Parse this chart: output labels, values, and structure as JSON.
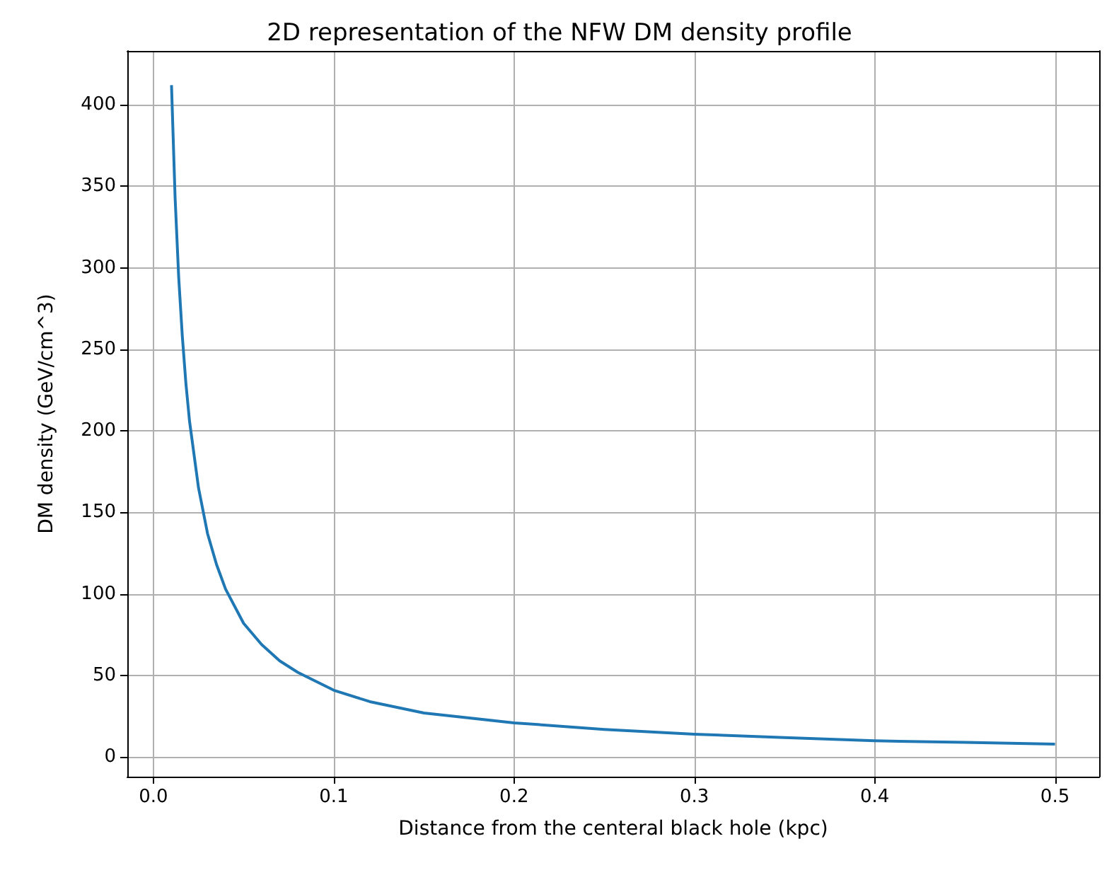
{
  "chart_data": {
    "type": "line",
    "title": "2D representation of the NFW DM density profile",
    "xlabel": "Distance from the centeral black hole (kpc)",
    "ylabel": "DM density (GeV/cm^3)",
    "x": [
      0.01,
      0.012,
      0.014,
      0.016,
      0.018,
      0.02,
      0.025,
      0.03,
      0.035,
      0.04,
      0.05,
      0.06,
      0.07,
      0.08,
      0.1,
      0.12,
      0.15,
      0.2,
      0.25,
      0.3,
      0.35,
      0.4,
      0.45,
      0.5
    ],
    "series": [
      {
        "color": "#1f77b4",
        "values": [
          412,
          343,
          294,
          258,
          229,
          206,
          165,
          137,
          118,
          103,
          82,
          69,
          59,
          52,
          41,
          34,
          27,
          21,
          17,
          14,
          12,
          10,
          9,
          8
        ]
      }
    ],
    "xlim": [
      -0.0145,
      0.5245
    ],
    "ylim": [
      -12,
      433
    ],
    "xticks": [
      {
        "value": 0,
        "label": "0.0"
      },
      0.1,
      0.2,
      0.3,
      0.4,
      0.5
    ],
    "yticks": [
      0,
      50,
      100,
      150,
      200,
      250,
      300,
      350,
      400
    ],
    "grid": true,
    "marker": "none",
    "line_style": "solid"
  }
}
